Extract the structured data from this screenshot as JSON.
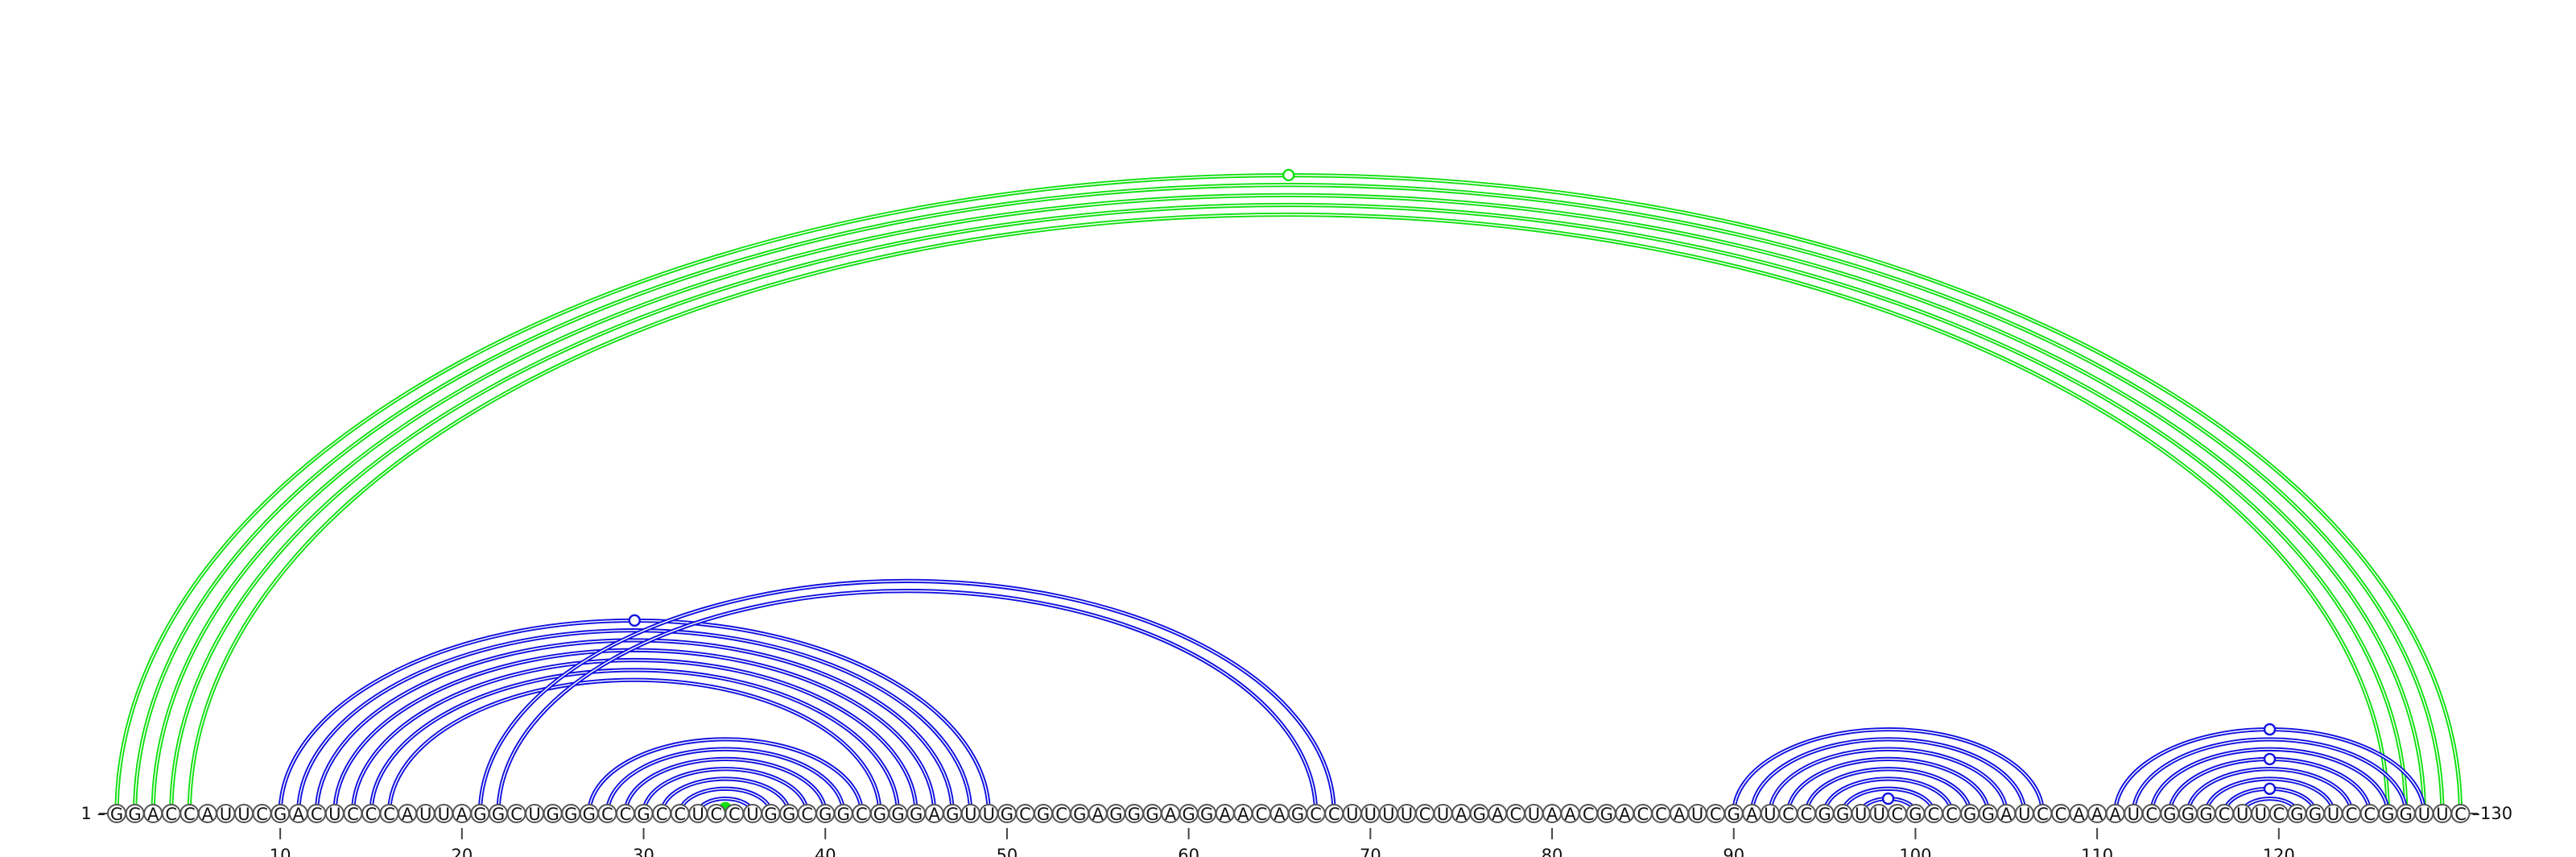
{
  "sequence": "GGACCAUUCGACUCCCAUUAGGCUGGGCCGCCUCCUGGCGGCGGGAGUUGCGCGAGGGAGGAACAGCCUUUUCUAGACUAACGACCAUCGAUCCGGUUCGCCGGAUCCAAAUCGGGCUUCGGUCCGGUUC",
  "start_label": "1 –",
  "end_label": "–130",
  "ticks": [
    10,
    20,
    30,
    40,
    50,
    60,
    70,
    80,
    90,
    100,
    110,
    120
  ],
  "colors": {
    "blue": "#1010e0",
    "green": "#10e010"
  },
  "helices": [
    {
      "color": "green",
      "side": "up",
      "pairs": [
        [
          1,
          130
        ],
        [
          2,
          129
        ],
        [
          3,
          128
        ],
        [
          4,
          127
        ],
        [
          5,
          126
        ]
      ],
      "markers": [
        {
          "index": 0,
          "type": "open"
        }
      ]
    },
    {
      "color": "blue",
      "side": "up",
      "pairs": [
        [
          10,
          49
        ],
        [
          11,
          48
        ],
        [
          12,
          47
        ],
        [
          13,
          46
        ],
        [
          14,
          45
        ],
        [
          15,
          44
        ],
        [
          16,
          43
        ]
      ],
      "markers": [
        {
          "index": 0,
          "type": "open"
        }
      ]
    },
    {
      "color": "blue",
      "side": "up",
      "pairs": [
        [
          21,
          68
        ],
        [
          22,
          67
        ]
      ],
      "markers": []
    },
    {
      "color": "blue",
      "side": "up",
      "pairs": [
        [
          27,
          42
        ],
        [
          28,
          41
        ],
        [
          29,
          40
        ],
        [
          30,
          39
        ],
        [
          31,
          38
        ],
        [
          32,
          37
        ],
        [
          33,
          36
        ]
      ],
      "markers": []
    },
    {
      "color": "green",
      "side": "up",
      "pairs": [
        [
          34,
          35
        ]
      ],
      "markers": [
        {
          "index": 0,
          "type": "filled"
        }
      ]
    },
    {
      "color": "blue",
      "side": "up",
      "pairs": [
        [
          90,
          107
        ],
        [
          91,
          106
        ],
        [
          92,
          105
        ],
        [
          93,
          104
        ],
        [
          94,
          103
        ],
        [
          95,
          102
        ],
        [
          96,
          101
        ],
        [
          97,
          100
        ]
      ],
      "markers": [
        {
          "index": 7,
          "type": "open"
        }
      ]
    },
    {
      "color": "blue",
      "side": "up",
      "pairs": [
        [
          111,
          128
        ],
        [
          112,
          127
        ],
        [
          113,
          126
        ],
        [
          114,
          125
        ],
        [
          115,
          124
        ],
        [
          116,
          123
        ],
        [
          117,
          122
        ],
        [
          118,
          121
        ]
      ],
      "markers": [
        {
          "index": 0,
          "type": "open"
        },
        {
          "index": 3,
          "type": "open"
        },
        {
          "index": 6,
          "type": "open"
        }
      ]
    }
  ]
}
